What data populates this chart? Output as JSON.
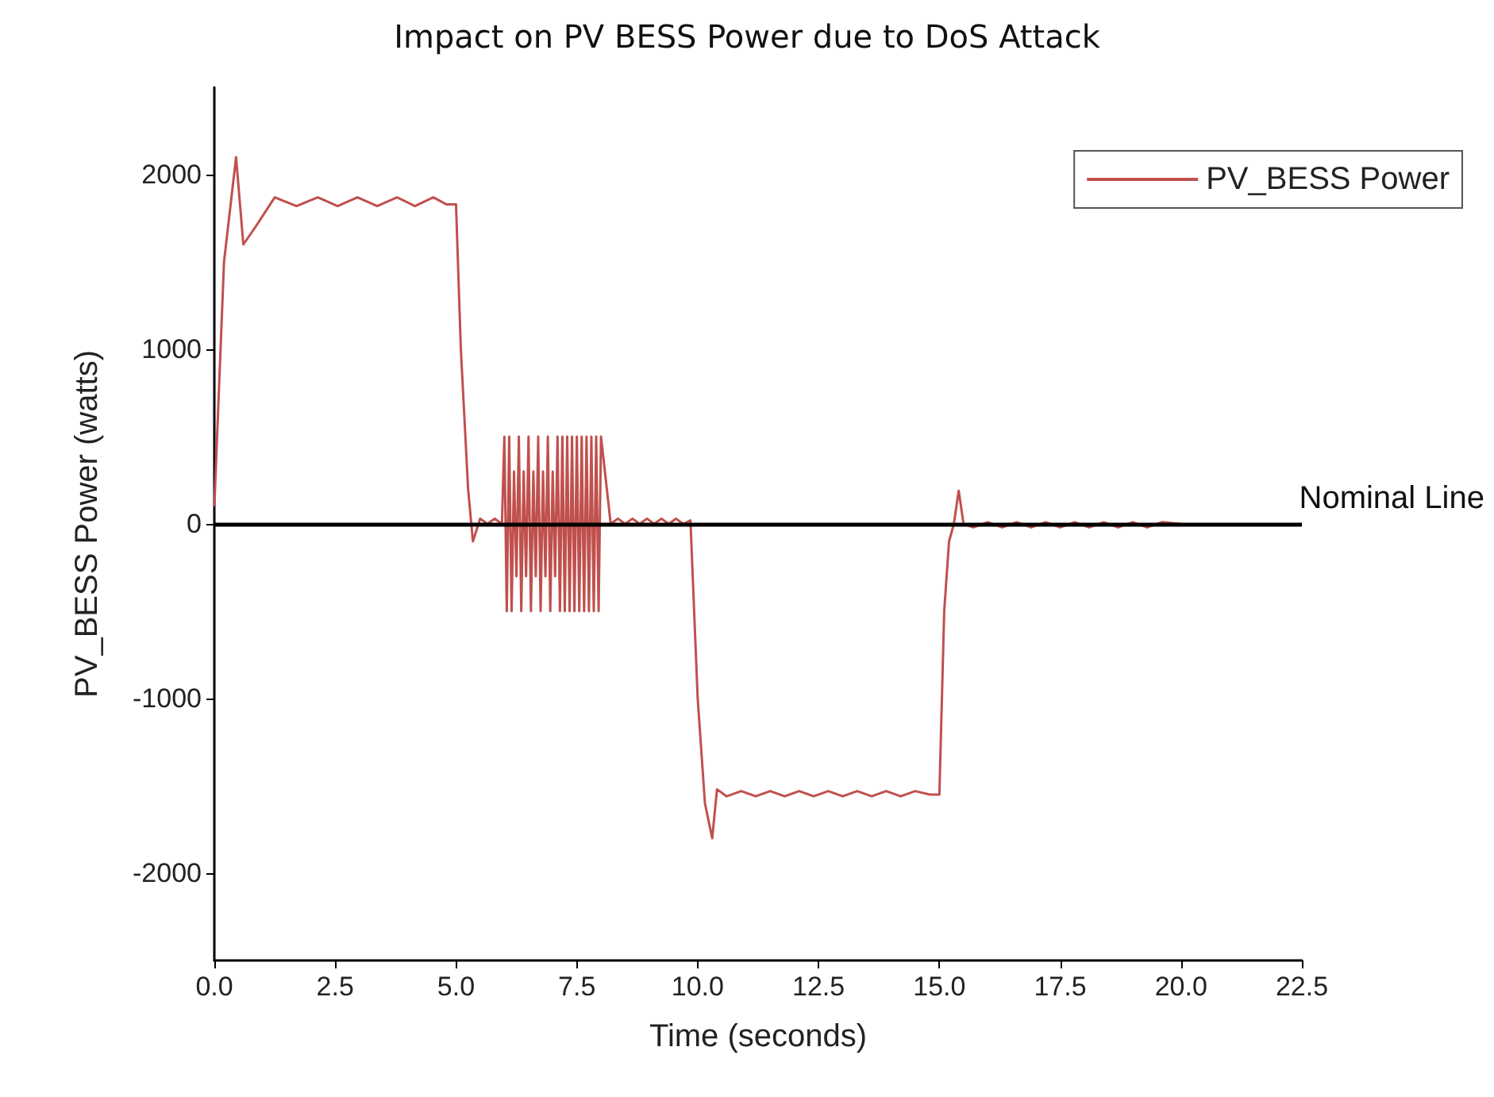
{
  "chart_data": {
    "type": "line",
    "title": "Impact on PV BESS Power due to DoS Attack",
    "xlabel": "Time (seconds)",
    "ylabel": "PV_BESS Power (watts)",
    "xlim": [
      0,
      22.5
    ],
    "xticks": [
      {
        "value": 0,
        "label": "0.0"
      },
      2.5,
      {
        "value": 5,
        "label": "5.0"
      },
      7.5,
      {
        "value": 10,
        "label": "10.0"
      },
      12.5,
      {
        "value": 15,
        "label": "15.0"
      },
      17.5,
      {
        "value": 20,
        "label": "20.0"
      },
      22.5
    ],
    "ylim": [
      -2500,
      2500
    ],
    "yticks": [
      -2000,
      -1000,
      0,
      1000,
      2000
    ],
    "grid": false,
    "legend": "top right",
    "marker": "none",
    "line_style": "solid",
    "ref_lines": [
      {
        "axis": "y",
        "value": 0,
        "label": "Nominal Line",
        "color": "#000000"
      }
    ],
    "series": [
      {
        "name": "PV_BESS Power",
        "color": "#c0504d",
        "x": [
          0,
          0.2,
          0.45,
          0.6,
          0.85,
          1.25,
          1.7,
          2.14,
          2.55,
          2.96,
          3.37,
          3.78,
          4.15,
          4.53,
          4.8,
          5.0,
          5.1,
          5.25,
          5.35,
          5.5,
          5.65,
          5.8,
          5.95,
          6.0,
          6.05,
          6.1,
          6.15,
          6.2,
          6.25,
          6.3,
          6.35,
          6.4,
          6.45,
          6.5,
          6.55,
          6.6,
          6.65,
          6.7,
          6.75,
          6.8,
          6.85,
          6.9,
          6.95,
          7.0,
          7.05,
          7.1,
          7.15,
          7.2,
          7.25,
          7.3,
          7.35,
          7.4,
          7.45,
          7.5,
          7.55,
          7.6,
          7.65,
          7.7,
          7.75,
          7.8,
          7.85,
          7.9,
          7.95,
          8.0,
          8.2,
          8.35,
          8.5,
          8.65,
          8.8,
          8.95,
          9.1,
          9.25,
          9.4,
          9.55,
          9.7,
          9.85,
          10.0,
          10.15,
          10.3,
          10.4,
          10.6,
          10.9,
          11.2,
          11.5,
          11.8,
          12.1,
          12.4,
          12.7,
          13.0,
          13.3,
          13.6,
          13.9,
          14.2,
          14.5,
          14.8,
          15.0,
          15.1,
          15.2,
          15.3,
          15.4,
          15.5,
          15.7,
          16.0,
          16.3,
          16.6,
          16.9,
          17.2,
          17.5,
          17.8,
          18.1,
          18.4,
          18.7,
          19.0,
          19.3,
          19.6,
          20.0
        ],
        "values": [
          100,
          1500,
          2100,
          1600,
          1700,
          1870,
          1820,
          1870,
          1820,
          1870,
          1820,
          1870,
          1820,
          1870,
          1830,
          1830,
          1000,
          200,
          -100,
          30,
          0,
          30,
          0,
          500,
          -500,
          500,
          -500,
          300,
          -300,
          500,
          -500,
          300,
          -300,
          500,
          -500,
          300,
          -300,
          500,
          -500,
          300,
          -300,
          500,
          -500,
          300,
          -300,
          500,
          -500,
          500,
          -500,
          500,
          -500,
          500,
          -500,
          500,
          -500,
          500,
          -500,
          500,
          -500,
          500,
          -500,
          500,
          -500,
          500,
          0,
          30,
          0,
          30,
          0,
          30,
          0,
          30,
          0,
          30,
          0,
          20,
          -1000,
          -1600,
          -1800,
          -1520,
          -1560,
          -1530,
          -1560,
          -1530,
          -1560,
          -1530,
          -1560,
          -1530,
          -1560,
          -1530,
          -1560,
          -1530,
          -1560,
          -1530,
          -1550,
          -1550,
          -500,
          -100,
          0,
          190,
          0,
          -20,
          10,
          -20,
          10,
          -20,
          10,
          -20,
          10,
          -20,
          10,
          -20,
          10,
          -20,
          10,
          0
        ]
      }
    ]
  }
}
